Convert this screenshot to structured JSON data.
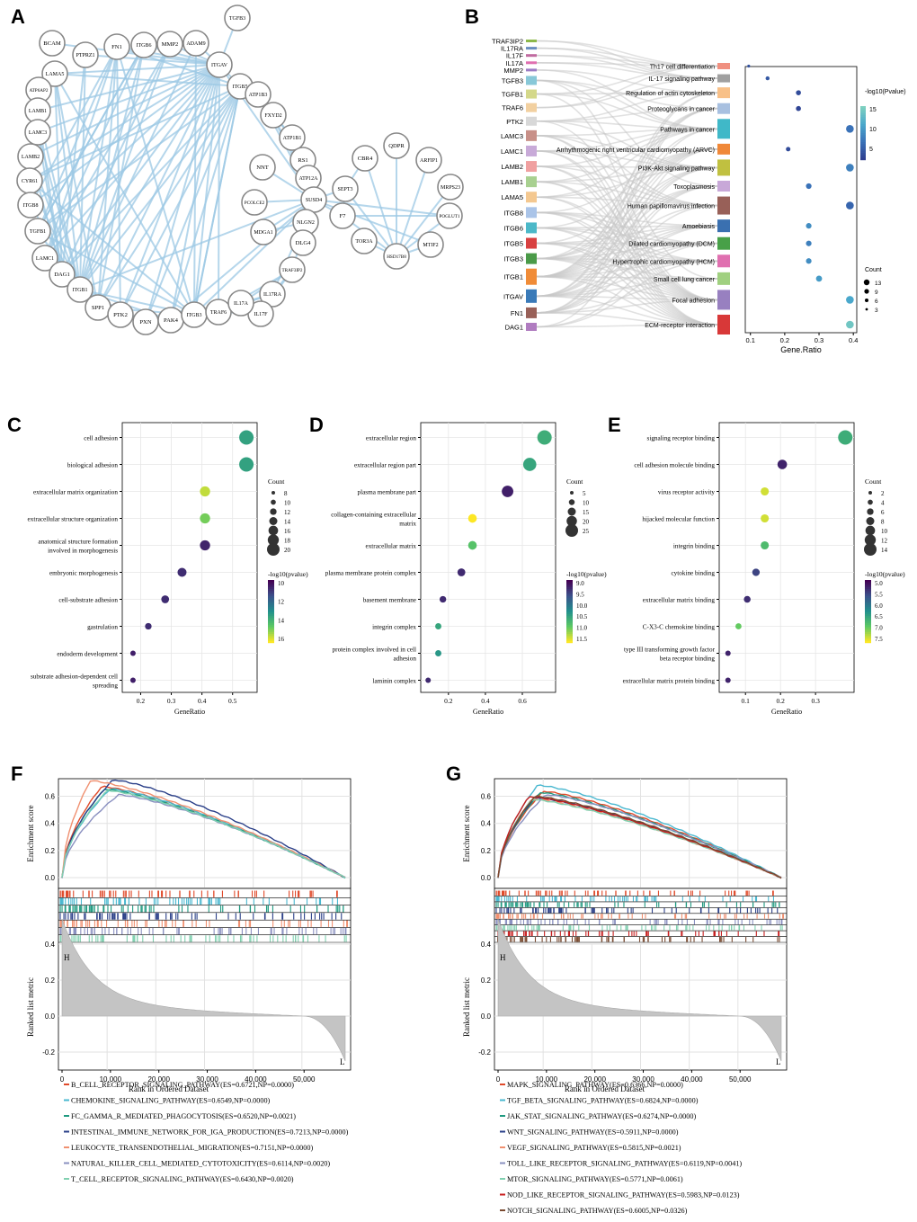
{
  "panels": {
    "A": "A",
    "B": "B",
    "C": "C",
    "D": "D",
    "E": "E",
    "F": "F",
    "G": "G"
  },
  "network": {
    "nodes": [
      "TGFB3",
      "BCAM",
      "MMP2",
      "ADAM9",
      "ITGB6",
      "FN1",
      "PTPRZ1",
      "ITGAV",
      "ITGB5",
      "LAMA5",
      "ATP1B3",
      "ATP6AP2",
      "FXYD2",
      "LAMB1",
      "ATP1B1",
      "LAMC3",
      "RS1",
      "ATP12A",
      "LAMB2",
      "NNT",
      "SUSD4",
      "CYR61",
      "ITGB8",
      "PCOLCE2",
      "NLGN2",
      "TGFB1",
      "MDGA1",
      "DLG4",
      "LAMC1",
      "TRAF3IP2",
      "DAG1",
      "IL17RA",
      "ITGB1",
      "IL17F",
      "SPP1",
      "PTK2",
      "PXN",
      "PAK4",
      "ITGB3",
      "TRAF6",
      "IL17A",
      "QDPR",
      "CBR4",
      "ARFIP1",
      "SEPT3",
      "MRPS23",
      "F7",
      "POGLUT1",
      "TOR3A",
      "MTIF2",
      "HSD17B8"
    ],
    "hub_edges": [
      [
        "ITGAV",
        "BCAM"
      ],
      [
        "ITGAV",
        "LAMA5"
      ],
      [
        "ITGAV",
        "LAMB1"
      ],
      [
        "ITGAV",
        "LAMC3"
      ],
      [
        "ITGAV",
        "LAMB2"
      ],
      [
        "ITGAV",
        "CYR61"
      ],
      [
        "ITGAV",
        "ITGB8"
      ],
      [
        "ITGAV",
        "TGFB1"
      ],
      [
        "ITGAV",
        "LAMC1"
      ],
      [
        "ITGAV",
        "DAG1"
      ],
      [
        "ITGAV",
        "ITGB1"
      ],
      [
        "ITGAV",
        "SPP1"
      ],
      [
        "ITGAV",
        "PTK2"
      ],
      [
        "ITGAV",
        "PXN"
      ],
      [
        "ITGAV",
        "PAK4"
      ],
      [
        "ITGAV",
        "ITGB3"
      ],
      [
        "ITGAV",
        "TRAF6"
      ],
      [
        "ITGAV",
        "FN1"
      ],
      [
        "ITGAV",
        "ITGB6"
      ],
      [
        "ITGAV",
        "MMP2"
      ],
      [
        "ITGAV",
        "ADAM9"
      ],
      [
        "ITGAV",
        "TGFB3"
      ],
      [
        "ITGAV",
        "ITGB5"
      ],
      [
        "ITGAV",
        "PTPRZ1"
      ],
      [
        "ITGAV",
        "SUSD4"
      ],
      [
        "ITGB5",
        "ITGB1"
      ],
      [
        "ITGB5",
        "LAMA5"
      ],
      [
        "ITGB5",
        "SPP1"
      ],
      [
        "ITGB5",
        "PTK2"
      ],
      [
        "ITGB5",
        "PXN"
      ],
      [
        "ITGB5",
        "PAK4"
      ],
      [
        "ITGB5",
        "ITGB3"
      ],
      [
        "ITGB5",
        "FN1"
      ],
      [
        "ITGB5",
        "TGFB1"
      ],
      [
        "ITGB5",
        "CYR61"
      ],
      [
        "ITGB5",
        "DAG1"
      ],
      [
        "ITGB6",
        "ITGB1"
      ],
      [
        "ITGB6",
        "LAMC1"
      ],
      [
        "ITGB6",
        "SPP1"
      ],
      [
        "ITGB6",
        "TGFB1"
      ],
      [
        "MMP2",
        "ITGB1"
      ],
      [
        "MMP2",
        "LAMC1"
      ],
      [
        "MMP2",
        "DAG1"
      ],
      [
        "ADAM9",
        "ITGB1"
      ],
      [
        "ADAM9",
        "ITGB3"
      ],
      [
        "FN1",
        "ITGB1"
      ],
      [
        "FN1",
        "ITGB3"
      ],
      [
        "FN1",
        "SPP1"
      ],
      [
        "FN1",
        "PTK2"
      ],
      [
        "FN1",
        "ITGB8"
      ],
      [
        "FN1",
        "TGFB1"
      ],
      [
        "FN1",
        "LAMC1"
      ],
      [
        "PTPRZ1",
        "ITGB1"
      ],
      [
        "PTPRZ1",
        "DAG1"
      ],
      [
        "LAMA5",
        "ITGB1"
      ],
      [
        "LAMA5",
        "DAG1"
      ],
      [
        "LAMA5",
        "ITGB3"
      ],
      [
        "LAMA5",
        "SPP1"
      ],
      [
        "LAMB1",
        "ITGB1"
      ],
      [
        "LAMB1",
        "DAG1"
      ],
      [
        "LAMC3",
        "DAG1"
      ],
      [
        "LAMC3",
        "ITGB1"
      ],
      [
        "LAMB2",
        "ITGB1"
      ],
      [
        "LAMB2",
        "DAG1"
      ],
      [
        "CYR61",
        "ITGB1"
      ],
      [
        "CYR61",
        "ITGB3"
      ],
      [
        "ITGB8",
        "ITGB1"
      ],
      [
        "TGFB1",
        "ITGB1"
      ],
      [
        "TGFB1",
        "ITGB3"
      ],
      [
        "TGFB1",
        "ITGB6"
      ],
      [
        "LAMC1",
        "ITGB1"
      ],
      [
        "DAG1",
        "ITGB1"
      ],
      [
        "DAG1",
        "PTK2"
      ],
      [
        "ITGB1",
        "SPP1"
      ],
      [
        "ITGB1",
        "PTK2"
      ],
      [
        "ITGB1",
        "PXN"
      ],
      [
        "ITGB1",
        "PAK4"
      ],
      [
        "ITGB1",
        "ITGB3"
      ],
      [
        "SPP1",
        "ITGB3"
      ],
      [
        "PTK2",
        "PXN"
      ],
      [
        "PTK2",
        "PAK4"
      ],
      [
        "PXN",
        "PAK4"
      ],
      [
        "PXN",
        "ITGB3"
      ],
      [
        "PAK4",
        "ITGB3"
      ],
      [
        "ITGB3",
        "ITGB5"
      ],
      [
        "SUSD4",
        "NNT"
      ],
      [
        "SUSD4",
        "PCOLCE2"
      ],
      [
        "SUSD4",
        "NLGN2"
      ],
      [
        "SUSD4",
        "MDGA1"
      ],
      [
        "SUSD4",
        "DLG4"
      ],
      [
        "SUSD4",
        "ATP12A"
      ],
      [
        "SUSD4",
        "RS1"
      ],
      [
        "SUSD4",
        "ATP1B1"
      ],
      [
        "SUSD4",
        "FXYD2"
      ],
      [
        "SUSD4",
        "ATP1B3"
      ],
      [
        "SUSD4",
        "ITGB1"
      ],
      [
        "SUSD4",
        "ITGB3"
      ],
      [
        "SUSD4",
        "TRAF3IP2"
      ],
      [
        "SUSD4",
        "IL17RA"
      ],
      [
        "SUSD4",
        "SEPT3"
      ],
      [
        "SUSD4",
        "F7"
      ],
      [
        "SUSD4",
        "PAK4"
      ],
      [
        "ATP1B1",
        "ATP1B3"
      ],
      [
        "ATP1B1",
        "FXYD2"
      ],
      [
        "ATP12A",
        "ATP1B1"
      ],
      [
        "ATP12A",
        "ATP1B3"
      ],
      [
        "NLGN2",
        "DLG4"
      ],
      [
        "NLGN2",
        "MDGA1"
      ],
      [
        "TRAF3IP2",
        "IL17RA"
      ],
      [
        "TRAF3IP2",
        "IL17F"
      ],
      [
        "TRAF3IP2",
        "IL17A"
      ],
      [
        "TRAF3IP2",
        "TRAF6"
      ],
      [
        "IL17RA",
        "IL17F"
      ],
      [
        "IL17RA",
        "IL17A"
      ],
      [
        "IL17RA",
        "TRAF6"
      ],
      [
        "IL17F",
        "IL17A"
      ],
      [
        "TRAF6",
        "IL17A"
      ],
      [
        "TRAF6",
        "IL17F"
      ],
      [
        "TRAF6",
        "PAK4"
      ],
      [
        "HSD17B8",
        "QDPR"
      ],
      [
        "HSD17B8",
        "CBR4"
      ],
      [
        "HSD17B8",
        "ARFIP1"
      ],
      [
        "HSD17B8",
        "SEPT3"
      ],
      [
        "HSD17B8",
        "MRPS23"
      ],
      [
        "HSD17B8",
        "F7"
      ],
      [
        "HSD17B8",
        "POGLUT1"
      ],
      [
        "HSD17B8",
        "TOR3A"
      ],
      [
        "HSD17B8",
        "MTIF2"
      ],
      [
        "F7",
        "POGLUT1"
      ],
      [
        "F7",
        "SEPT3"
      ],
      [
        "CBR4",
        "SEPT3"
      ],
      [
        "SUSD4",
        "POGLUT1"
      ],
      [
        "SUSD4",
        "MTIF2"
      ]
    ]
  },
  "sankey": {
    "genes": [
      "TRAF3IP2",
      "IL17RA",
      "IL17F",
      "IL17A",
      "MMP2",
      "TGFB3",
      "TGFB1",
      "TRAF6",
      "PTK2",
      "LAMC3",
      "LAMC1",
      "LAMB2",
      "LAMB1",
      "LAMA5",
      "ITGB8",
      "ITGB6",
      "ITGB5",
      "ITGB3",
      "ITGB1",
      "ITGAV",
      "FN1",
      "DAG1"
    ],
    "gene_colors": [
      "#8db84a",
      "#6b8fc0",
      "#c06aa0",
      "#e070b0",
      "#9b7cc4",
      "#88c8d8",
      "#d4d88a",
      "#f2d0a0",
      "#d8d8d8",
      "#c89088",
      "#c8aad8",
      "#f0a0a0",
      "#a8d090",
      "#f4c890",
      "#aac4e8",
      "#4cb8c8",
      "#d84040",
      "#4a9a48",
      "#f08c38",
      "#3a7ab8",
      "#986058",
      "#b07cc0"
    ],
    "pathways": [
      "Th17 cell differentiation",
      "IL-17 signaling pathway",
      "Regulation of actin cytoskeleton",
      "Proteoglycans in cancer",
      "Pathways in cancer",
      "Arrhythmogenic right ventricular cardiomyopathy (ARVC)",
      "PI3K-Akt signaling pathway",
      "Toxoplasmosis",
      "Human papillomavirus infection",
      "Amoebiasis",
      "Dilated cardiomyopathy (DCM)",
      "Hypertrophic cardiomyopathy (HCM)",
      "Small cell lung cancer",
      "Focal adhesion",
      "ECM-receptor interaction"
    ],
    "pathway_colors": [
      "#f09080",
      "#a0a0a0",
      "#f8c088",
      "#a8c0e0",
      "#40b8c8",
      "#f08838",
      "#c0c040",
      "#c8a8d8",
      "#986058",
      "#3a70b0",
      "#48a048",
      "#e070b0",
      "#a0d080",
      "#9880c0",
      "#d83838"
    ]
  },
  "dotB": {
    "title": "Gene.Ratio",
    "ratios": [
      0.095,
      0.15,
      0.24,
      0.24,
      0.39,
      0.21,
      0.39,
      0.27,
      0.39,
      0.27,
      0.27,
      0.27,
      0.3,
      0.39,
      0.39
    ],
    "pvals": [
      5.5,
      6,
      5,
      4.5,
      8,
      5,
      9,
      8,
      7,
      10,
      9,
      10,
      11,
      12,
      15
    ],
    "counts": [
      2,
      4,
      6,
      6,
      11,
      5,
      11,
      7,
      11,
      7,
      7,
      7,
      8,
      11,
      11
    ],
    "xticks": [
      "0.1",
      "0.2",
      "0.3",
      "0.4"
    ],
    "xmin": 0.085,
    "xmax": 0.41,
    "legend_color_title": "-log10(Pvalue)",
    "color_ticks": [
      "15",
      "10",
      "5"
    ],
    "legend_size_title": "Count",
    "size_ticks": [
      "13",
      "9",
      "6",
      "3"
    ]
  },
  "panelC": {
    "labels": [
      "cell adhesion",
      "biological adhesion",
      "extracellular matrix organization",
      "extracellular structure organization",
      "anatomical structure formation involved in morphogenesis",
      "embryonic morphogenesis",
      "cell-substrate adhesion",
      "gastrulation",
      "endoderm development",
      "substrate adhesion-dependent cell spreading"
    ],
    "ratios": [
      0.545,
      0.545,
      0.41,
      0.41,
      0.41,
      0.335,
      0.28,
      0.225,
      0.175,
      0.175
    ],
    "counts": [
      20,
      20,
      13,
      13,
      13,
      11,
      9,
      7,
      5,
      5
    ],
    "pvals": [
      13.8,
      13.8,
      16.3,
      15.4,
      10.3,
      10.5,
      10.5,
      10.5,
      10.2,
      10.2
    ],
    "xticks": [
      "0.2",
      "0.3",
      "0.4",
      "0.5"
    ],
    "xmin": 0.14,
    "xmax": 0.58,
    "pmin": 9.5,
    "pmax": 17,
    "xlabel": "GeneRatio",
    "count_title": "Count",
    "count_ticks": [
      "8",
      "10",
      "12",
      "14",
      "16",
      "18",
      "20"
    ],
    "p_title": "-log10(pvalue)",
    "p_ticks": [
      "10",
      "12",
      "14",
      "16"
    ]
  },
  "panelD": {
    "labels": [
      "extracellular region",
      "extracellular region part",
      "plasma membrane part",
      "collagen-containing extracellular matrix",
      "extracellular matrix",
      "plasma membrane protein complex",
      "basement membrane",
      "integrin complex",
      "protein complex involved in cell adhesion",
      "laminin complex"
    ],
    "ratios": [
      0.72,
      0.64,
      0.52,
      0.33,
      0.33,
      0.27,
      0.17,
      0.145,
      0.145,
      0.09
    ],
    "counts": [
      25,
      22,
      18,
      11,
      11,
      9,
      6,
      5,
      5,
      3
    ],
    "pvals": [
      10.7,
      10.6,
      9.0,
      11.9,
      11.0,
      9.1,
      9.1,
      10.6,
      10.4,
      9.1
    ],
    "xticks": [
      "0.2",
      "0.4",
      "0.6"
    ],
    "xmin": 0.05,
    "xmax": 0.78,
    "pmin": 8.7,
    "pmax": 11.9,
    "xlabel": "GeneRatio",
    "count_title": "Count",
    "count_ticks": [
      "5",
      "10",
      "15",
      "20",
      "25"
    ],
    "p_title": "-log10(pvalue)",
    "p_ticks": [
      "9.0",
      "9.5",
      "10.0",
      "10.5",
      "11.0",
      "11.5"
    ]
  },
  "panelE": {
    "labels": [
      "signaling receptor binding",
      "cell adhesion molecule binding",
      "virus receptor activity",
      "hijacked molecular function",
      "integrin binding",
      "cytokine binding",
      "extracellular matrix binding",
      "C-X3-C chemokine binding",
      "type III transforming growth factor beta receptor binding",
      "extracellular matrix protein binding"
    ],
    "ratios": [
      0.385,
      0.205,
      0.155,
      0.155,
      0.155,
      0.13,
      0.105,
      0.08,
      0.05,
      0.05
    ],
    "counts": [
      15,
      8,
      6,
      6,
      6,
      5,
      4,
      3,
      2,
      2
    ],
    "pvals": [
      6.6,
      5.1,
      7.5,
      7.5,
      6.8,
      5.4,
      5.2,
      7.0,
      5.1,
      5.1
    ],
    "xticks": [
      "0.1",
      "0.2",
      "0.3"
    ],
    "xmin": 0.025,
    "xmax": 0.41,
    "pmin": 4.8,
    "pmax": 7.7,
    "xlabel": "GeneRatio",
    "count_title": "Count",
    "count_ticks": [
      "2",
      "4",
      "6",
      "8",
      "10",
      "12",
      "14"
    ],
    "p_title": "-log10(pvalue)",
    "p_ticks": [
      "5.0",
      "5.5",
      "6.0",
      "6.5",
      "7.0",
      "7.5"
    ]
  },
  "gseaF": {
    "ylabel_top": "Enrichment score",
    "ylabel_bottom": "Ranked list metric",
    "xlabel": "Rank in Ordered Dataset",
    "es_ticks": [
      "0.0",
      "0.2",
      "0.4",
      "0.6"
    ],
    "metric_ticks": [
      "-0.2",
      "0.0",
      "0.2",
      "0.4"
    ],
    "xticks": [
      "0",
      "10,000",
      "20,000",
      "30,000",
      "40,000",
      "50,000"
    ],
    "h_label": "H",
    "l_label": "L",
    "series": [
      {
        "label": "B_CELL_RECEPTOR_SIGNALING_PATHWAY(ES=0.6721,NP=0.0000)",
        "color": "#e04a2a",
        "es": 0.6721,
        "peak": 0.14
      },
      {
        "label": "CHEMOKINE_SIGNALING_PATHWAY(ES=0.6549,NP=0.0000)",
        "color": "#4ab8d0",
        "es": 0.6549,
        "peak": 0.17
      },
      {
        "label": "FC_GAMMA_R_MEDIATED_PHAGOCYTOSIS(ES=0.6520,NP=0.0021)",
        "color": "#1f9a80",
        "es": 0.652,
        "peak": 0.15
      },
      {
        "label": "INTESTINAL_IMMUNE_NETWORK_FOR_IGA_PRODUCTION(ES=0.7213,NP=0.0000)",
        "color": "#2a3f88",
        "es": 0.7213,
        "peak": 0.18
      },
      {
        "label": "LEUKOCYTE_TRANSENDOTHELIAL_MIGRATION(ES=0.7151,NP=0.0000)",
        "color": "#f09070",
        "es": 0.7151,
        "peak": 0.1
      },
      {
        "label": "NATURAL_KILLER_CELL_MEDIATED_CYTOTOXICITY(ES=0.6114,NP=0.0020)",
        "color": "#8a90c0",
        "es": 0.6114,
        "peak": 0.2
      },
      {
        "label": "T_CELL_RECEPTOR_SIGNALING_PATHWAY(ES=0.6430,NP=0.0020)",
        "color": "#80d0b0",
        "es": 0.643,
        "peak": 0.16
      }
    ]
  },
  "gseaG": {
    "ylabel_top": "Enrichment score",
    "ylabel_bottom": "Ranked list metric",
    "xlabel": "Rank in Ordered Dataset",
    "es_ticks": [
      "0.0",
      "0.2",
      "0.4",
      "0.6"
    ],
    "metric_ticks": [
      "-0.2",
      "0.0",
      "0.2",
      "0.4"
    ],
    "xticks": [
      "0",
      "10,000",
      "20,000",
      "30,000",
      "40,000",
      "50,000"
    ],
    "h_label": "H",
    "l_label": "L",
    "series": [
      {
        "label": "MAPK_SIGNALING_PATHWAY(ES=0.6366,NP=0.0000)",
        "color": "#e04a2a",
        "es": 0.6366,
        "peak": 0.16
      },
      {
        "label": "TGF_BETA_SIGNALING_PATHWAY(ES=0.6824,NP=0.0000)",
        "color": "#4ab8d0",
        "es": 0.6824,
        "peak": 0.14
      },
      {
        "label": "JAK_STAT_SIGNALING_PATHWAY(ES=0.6274,NP=0.0000)",
        "color": "#1f9a80",
        "es": 0.6274,
        "peak": 0.15
      },
      {
        "label": "WNT_SIGNALING_PATHWAY(ES=0.5911,NP=0.0000)",
        "color": "#2a3f88",
        "es": 0.5911,
        "peak": 0.13
      },
      {
        "label": "VEGF_SIGNALING_PATHWAY(ES=0.5815,NP=0.0021)",
        "color": "#f09070",
        "es": 0.5815,
        "peak": 0.12
      },
      {
        "label": "TOLL_LIKE_RECEPTOR_SIGNALING_PATHWAY(ES=0.6119,NP=0.0041)",
        "color": "#8a90c0",
        "es": 0.6119,
        "peak": 0.17
      },
      {
        "label": "MTOR_SIGNALING_PATHWAY(ES=0.5771,NP=0.0061)",
        "color": "#80d0b0",
        "es": 0.5771,
        "peak": 0.12
      },
      {
        "label": "NOD_LIKE_RECEPTOR_SIGNALING_PATHWAY(ES=0.5983,NP=0.0123)",
        "color": "#c81e1e",
        "es": 0.5983,
        "peak": 0.11
      },
      {
        "label": "NOTCH_SIGNALING_PATHWAY(ES=0.6005,NP=0.0326)",
        "color": "#7a4a30",
        "es": 0.6005,
        "peak": 0.13
      }
    ]
  }
}
